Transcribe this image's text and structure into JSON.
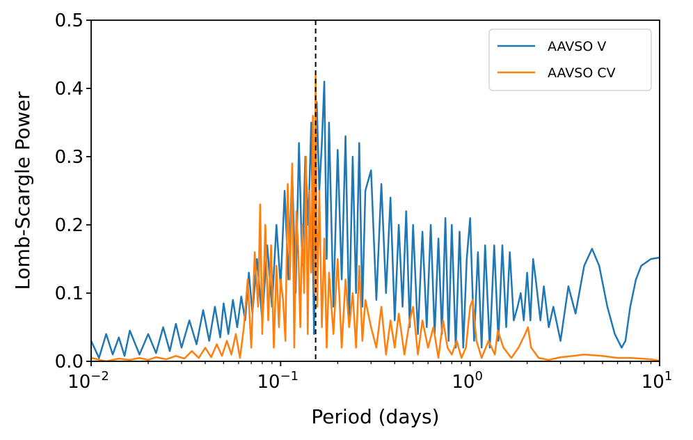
{
  "chart_data": {
    "type": "line",
    "title": "",
    "xlabel": "Period (days)",
    "ylabel": "Lomb-Scargle Power",
    "xscale": "log",
    "xlim": [
      0.01,
      10
    ],
    "ylim": [
      0.0,
      0.5
    ],
    "grid": false,
    "legend_placement": "top-right",
    "x_ticks": [
      {
        "value": 0.01,
        "base": "10",
        "exp": "−2"
      },
      {
        "value": 0.1,
        "base": "10",
        "exp": "−1"
      },
      {
        "value": 1,
        "base": "10",
        "exp": "0"
      },
      {
        "value": 10,
        "base": "10",
        "exp": "1"
      }
    ],
    "y_ticks": [
      {
        "value": 0.0,
        "label": "0.0"
      },
      {
        "value": 0.1,
        "label": "0.1"
      },
      {
        "value": 0.2,
        "label": "0.2"
      },
      {
        "value": 0.3,
        "label": "0.3"
      },
      {
        "value": 0.4,
        "label": "0.4"
      },
      {
        "value": 0.5,
        "label": "0.5"
      }
    ],
    "reference_line": {
      "x": 0.153,
      "style": "dashed",
      "color": "#000000"
    },
    "series": [
      {
        "name": "AAVSO V",
        "color": "#1f77b4",
        "x": [
          0.01,
          0.011,
          0.012,
          0.013,
          0.014,
          0.015,
          0.016,
          0.018,
          0.02,
          0.022,
          0.024,
          0.026,
          0.028,
          0.03,
          0.033,
          0.036,
          0.039,
          0.042,
          0.045,
          0.048,
          0.05,
          0.053,
          0.056,
          0.059,
          0.062,
          0.065,
          0.068,
          0.071,
          0.075,
          0.08,
          0.085,
          0.09,
          0.095,
          0.1,
          0.105,
          0.11,
          0.115,
          0.12,
          0.125,
          0.13,
          0.135,
          0.14,
          0.145,
          0.15,
          0.155,
          0.16,
          0.165,
          0.17,
          0.175,
          0.18,
          0.19,
          0.2,
          0.21,
          0.22,
          0.23,
          0.24,
          0.25,
          0.26,
          0.27,
          0.28,
          0.3,
          0.32,
          0.34,
          0.36,
          0.38,
          0.4,
          0.42,
          0.44,
          0.46,
          0.48,
          0.5,
          0.53,
          0.56,
          0.59,
          0.62,
          0.65,
          0.68,
          0.71,
          0.74,
          0.77,
          0.8,
          0.84,
          0.88,
          0.92,
          0.96,
          1.0,
          1.05,
          1.1,
          1.15,
          1.2,
          1.27,
          1.34,
          1.41,
          1.48,
          1.55,
          1.62,
          1.7,
          1.78,
          1.85,
          1.92,
          2.0,
          2.08,
          2.15,
          2.22,
          2.35,
          2.45,
          2.6,
          2.75,
          3.0,
          3.3,
          3.6,
          4.0,
          4.4,
          4.8,
          5.3,
          5.8,
          6.3,
          6.6,
          7.0,
          7.5,
          8.0,
          9.0,
          10.0
        ],
        "y": [
          0.03,
          0.005,
          0.04,
          0.01,
          0.035,
          0.008,
          0.045,
          0.01,
          0.04,
          0.012,
          0.05,
          0.015,
          0.055,
          0.02,
          0.06,
          0.025,
          0.075,
          0.03,
          0.08,
          0.035,
          0.085,
          0.04,
          0.09,
          0.05,
          0.095,
          0.06,
          0.13,
          0.07,
          0.15,
          0.06,
          0.17,
          0.08,
          0.2,
          0.11,
          0.25,
          0.12,
          0.28,
          0.1,
          0.32,
          0.14,
          0.3,
          0.2,
          0.35,
          0.04,
          0.38,
          0.25,
          0.32,
          0.41,
          0.15,
          0.35,
          0.08,
          0.31,
          0.12,
          0.33,
          0.06,
          0.3,
          0.1,
          0.32,
          0.08,
          0.25,
          0.28,
          0.09,
          0.26,
          0.1,
          0.24,
          0.06,
          0.2,
          0.08,
          0.22,
          0.05,
          0.2,
          0.04,
          0.19,
          0.05,
          0.2,
          0.04,
          0.18,
          0.04,
          0.21,
          0.03,
          0.2,
          0.02,
          0.19,
          0.02,
          0.15,
          0.21,
          0.03,
          0.16,
          0.02,
          0.17,
          0.02,
          0.17,
          0.03,
          0.17,
          0.05,
          0.16,
          0.06,
          0.08,
          0.1,
          0.06,
          0.13,
          0.06,
          0.15,
          0.12,
          0.06,
          0.11,
          0.05,
          0.08,
          0.03,
          0.11,
          0.07,
          0.14,
          0.165,
          0.14,
          0.08,
          0.04,
          0.02,
          0.03,
          0.08,
          0.12,
          0.14,
          0.15,
          0.152
        ]
      },
      {
        "name": "AAVSO CV",
        "color": "#ff7f0e",
        "x": [
          0.01,
          0.012,
          0.014,
          0.016,
          0.018,
          0.02,
          0.022,
          0.025,
          0.028,
          0.031,
          0.034,
          0.037,
          0.04,
          0.043,
          0.046,
          0.049,
          0.052,
          0.055,
          0.058,
          0.061,
          0.064,
          0.067,
          0.07,
          0.073,
          0.076,
          0.078,
          0.08,
          0.083,
          0.086,
          0.089,
          0.092,
          0.095,
          0.098,
          0.1,
          0.103,
          0.106,
          0.109,
          0.112,
          0.115,
          0.118,
          0.121,
          0.124,
          0.127,
          0.13,
          0.133,
          0.136,
          0.139,
          0.142,
          0.145,
          0.148,
          0.151,
          0.153,
          0.156,
          0.16,
          0.165,
          0.17,
          0.175,
          0.18,
          0.19,
          0.2,
          0.21,
          0.22,
          0.23,
          0.24,
          0.25,
          0.26,
          0.27,
          0.28,
          0.3,
          0.32,
          0.34,
          0.36,
          0.38,
          0.4,
          0.42,
          0.45,
          0.48,
          0.5,
          0.53,
          0.56,
          0.6,
          0.64,
          0.68,
          0.72,
          0.76,
          0.8,
          0.85,
          0.9,
          0.95,
          1.0,
          1.03,
          1.08,
          1.15,
          1.25,
          1.35,
          1.4,
          1.5,
          1.65,
          1.8,
          1.95,
          2.02,
          2.1,
          2.3,
          2.6,
          3.0,
          3.5,
          4.0,
          5.0,
          6.0,
          7.0,
          8.0,
          9.0,
          10.0
        ],
        "y": [
          0.005,
          0.0,
          0.004,
          0.002,
          0.005,
          0.002,
          0.006,
          0.003,
          0.008,
          0.004,
          0.015,
          0.005,
          0.02,
          0.006,
          0.025,
          0.008,
          0.03,
          0.01,
          0.04,
          0.005,
          0.05,
          0.12,
          0.02,
          0.16,
          0.08,
          0.23,
          0.04,
          0.2,
          0.06,
          0.17,
          0.02,
          0.14,
          0.05,
          0.12,
          0.09,
          0.03,
          0.26,
          0.12,
          0.29,
          0.02,
          0.22,
          0.16,
          0.05,
          0.2,
          0.1,
          0.3,
          0.04,
          0.25,
          0.13,
          0.36,
          0.1,
          0.42,
          0.08,
          0.25,
          0.05,
          0.18,
          0.02,
          0.13,
          0.04,
          0.15,
          0.02,
          0.12,
          0.05,
          0.1,
          0.02,
          0.14,
          0.03,
          0.09,
          0.05,
          0.02,
          0.08,
          0.01,
          0.06,
          0.02,
          0.07,
          0.01,
          0.06,
          0.08,
          0.01,
          0.06,
          0.02,
          0.05,
          0.005,
          0.06,
          0.02,
          0.01,
          0.03,
          0.005,
          0.02,
          0.08,
          0.09,
          0.03,
          0.005,
          0.03,
          0.01,
          0.045,
          0.02,
          0.005,
          0.02,
          0.04,
          0.05,
          0.02,
          0.005,
          0.002,
          0.006,
          0.008,
          0.01,
          0.008,
          0.005,
          0.005,
          0.004,
          0.003,
          0.001
        ]
      }
    ]
  }
}
